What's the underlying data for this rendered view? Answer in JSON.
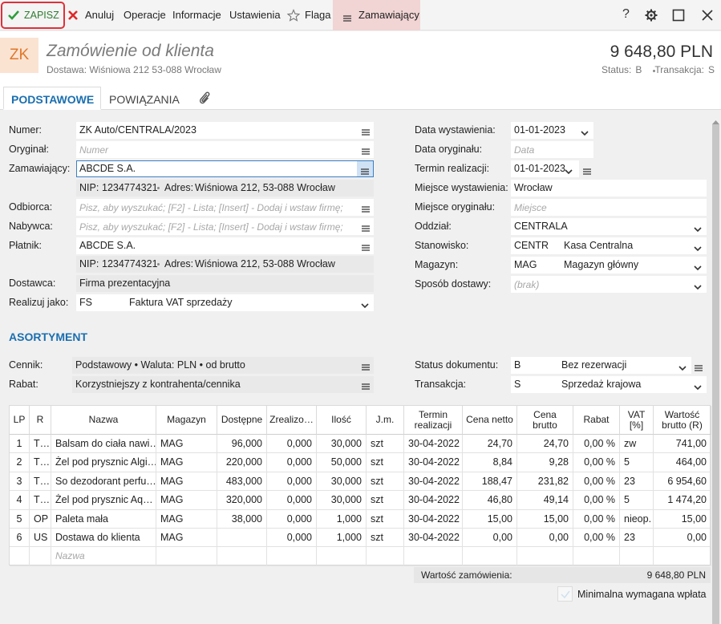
{
  "toolbar": {
    "save": "ZAPISZ",
    "cancel": "Anuluj",
    "items": [
      "Operacje",
      "Informacje",
      "Ustawienia"
    ],
    "flag": "Flaga",
    "menu": "Zamawiający",
    "help": "?"
  },
  "header": {
    "badge": "ZK",
    "title": "Zamówienie od klienta",
    "delivery": "Dostawa: Wiśniowa 212 53-088 Wrocław",
    "amount": "9 648,80 PLN",
    "status_label": "Status:",
    "status": "B",
    "transaction_label": "Transakcja:",
    "transaction": "S"
  },
  "tabs": [
    "PODSTAWOWE",
    "POWIĄZANIA"
  ],
  "form": {
    "left": [
      {
        "label": "Numer:",
        "value": "ZK Auto/CENTRALA/2023"
      },
      {
        "label": "Oryginał:",
        "placeholder": "Numer"
      },
      {
        "label": "Zamawiający:",
        "value": "ABCDE S.A."
      },
      {
        "nip_label": "NIP:",
        "nip": "1234774321",
        "address_label": "Adres:",
        "address": "Wiśniowa 212, 53-088 Wrocław"
      },
      {
        "label": "Odbiorca:",
        "placeholder": "Pisz, aby wyszukać; [F2] - Lista; [Insert] - Dodaj i wstaw firmę;"
      },
      {
        "label": "Nabywca:",
        "placeholder": "Pisz, aby wyszukać; [F2] - Lista; [Insert] - Dodaj i wstaw firmę;"
      },
      {
        "label": "Płatnik:",
        "value": "ABCDE S.A."
      },
      {
        "nip_label": "NIP:",
        "nip": "1234774321",
        "address_label": "Adres:",
        "address": "Wiśniowa 212, 53-088 Wrocław"
      },
      {
        "label": "Dostawca:",
        "value": "Firma prezentacyjna"
      },
      {
        "label": "Realizuj jako:",
        "code": "FS",
        "value": "Faktura VAT sprzedaży"
      }
    ],
    "right": [
      {
        "label": "Data wystawienia:",
        "value": "01-01-2023"
      },
      {
        "label": "Data oryginału:",
        "placeholder": "Data"
      },
      {
        "label": "Termin realizacji:",
        "value": "01-01-2023"
      },
      {
        "label": "Miejsce wystawienia:",
        "value": "Wrocław"
      },
      {
        "label": "Miejsce oryginału:",
        "placeholder": "Miejsce"
      },
      {
        "label": "Oddział:",
        "value": "CENTRALA"
      },
      {
        "label": "Stanowisko:",
        "code": "CENTR",
        "value": "Kasa Centralna"
      },
      {
        "label": "Magazyn:",
        "code": "MAG",
        "value": "Magazyn główny"
      },
      {
        "label": "Sposób dostawy:",
        "placeholder": "(brak)"
      }
    ]
  },
  "assortment": {
    "title": "ASORTYMENT",
    "left": [
      {
        "label": "Cennik:",
        "value": "Podstawowy • Waluta: PLN • od brutto"
      },
      {
        "label": "Rabat:",
        "value": "Korzystniejszy z kontrahenta/cennika"
      }
    ],
    "right": [
      {
        "label": "Status dokumentu:",
        "code": "B",
        "value": "Bez rezerwacji"
      },
      {
        "label": "Transakcja:",
        "code": "S",
        "value": "Sprzedaż krajowa"
      }
    ]
  },
  "table": {
    "headers": [
      "LP",
      "R",
      "Nazwa",
      "Magazyn",
      "Dostępne",
      "Zrealizo…",
      "Ilość",
      "J.m.",
      "Termin realizacji",
      "Cena netto",
      "Cena brutto",
      "Rabat",
      "VAT [%]",
      "Wartość brutto (R)"
    ],
    "rows": [
      [
        "1",
        "T…",
        "Balsam do ciała nawi…",
        "MAG",
        "96,000",
        "0,000",
        "30,000",
        "szt",
        "30-04-2022",
        "24,70",
        "24,70",
        "0,00 %",
        "zw",
        "741,00"
      ],
      [
        "2",
        "T…",
        "Żel pod prysznic Algi…",
        "MAG",
        "220,000",
        "0,000",
        "50,000",
        "szt",
        "30-04-2022",
        "8,84",
        "9,28",
        "0,00 %",
        "5",
        "464,00"
      ],
      [
        "3",
        "T…",
        "So dezodorant perfu…",
        "MAG",
        "483,000",
        "0,000",
        "30,000",
        "szt",
        "30-04-2022",
        "188,47",
        "231,82",
        "0,00 %",
        "23",
        "6 954,60"
      ],
      [
        "4",
        "T…",
        "Żel pod prysznic Aq…",
        "MAG",
        "320,000",
        "0,000",
        "30,000",
        "szt",
        "30-04-2022",
        "46,80",
        "49,14",
        "0,00 %",
        "5",
        "1 474,20"
      ],
      [
        "5",
        "OP",
        "Paleta mała",
        "MAG",
        "38,000",
        "0,000",
        "1,000",
        "szt",
        "30-04-2022",
        "15,00",
        "15,00",
        "0,00 %",
        "nieop.",
        "15,00"
      ],
      [
        "6",
        "US",
        "Dostawa do klienta",
        "MAG",
        "",
        "0,000",
        "1,000",
        "szt",
        "30-04-2022",
        "0,00",
        "0,00",
        "0,00 %",
        "23",
        "0,00"
      ]
    ],
    "new_row_placeholder": "Nazwa"
  },
  "footer": {
    "total_label": "Wartość zamówienia:",
    "total": "9 648,80 PLN",
    "checkbox": "Minimalna wymagana wpłata"
  }
}
